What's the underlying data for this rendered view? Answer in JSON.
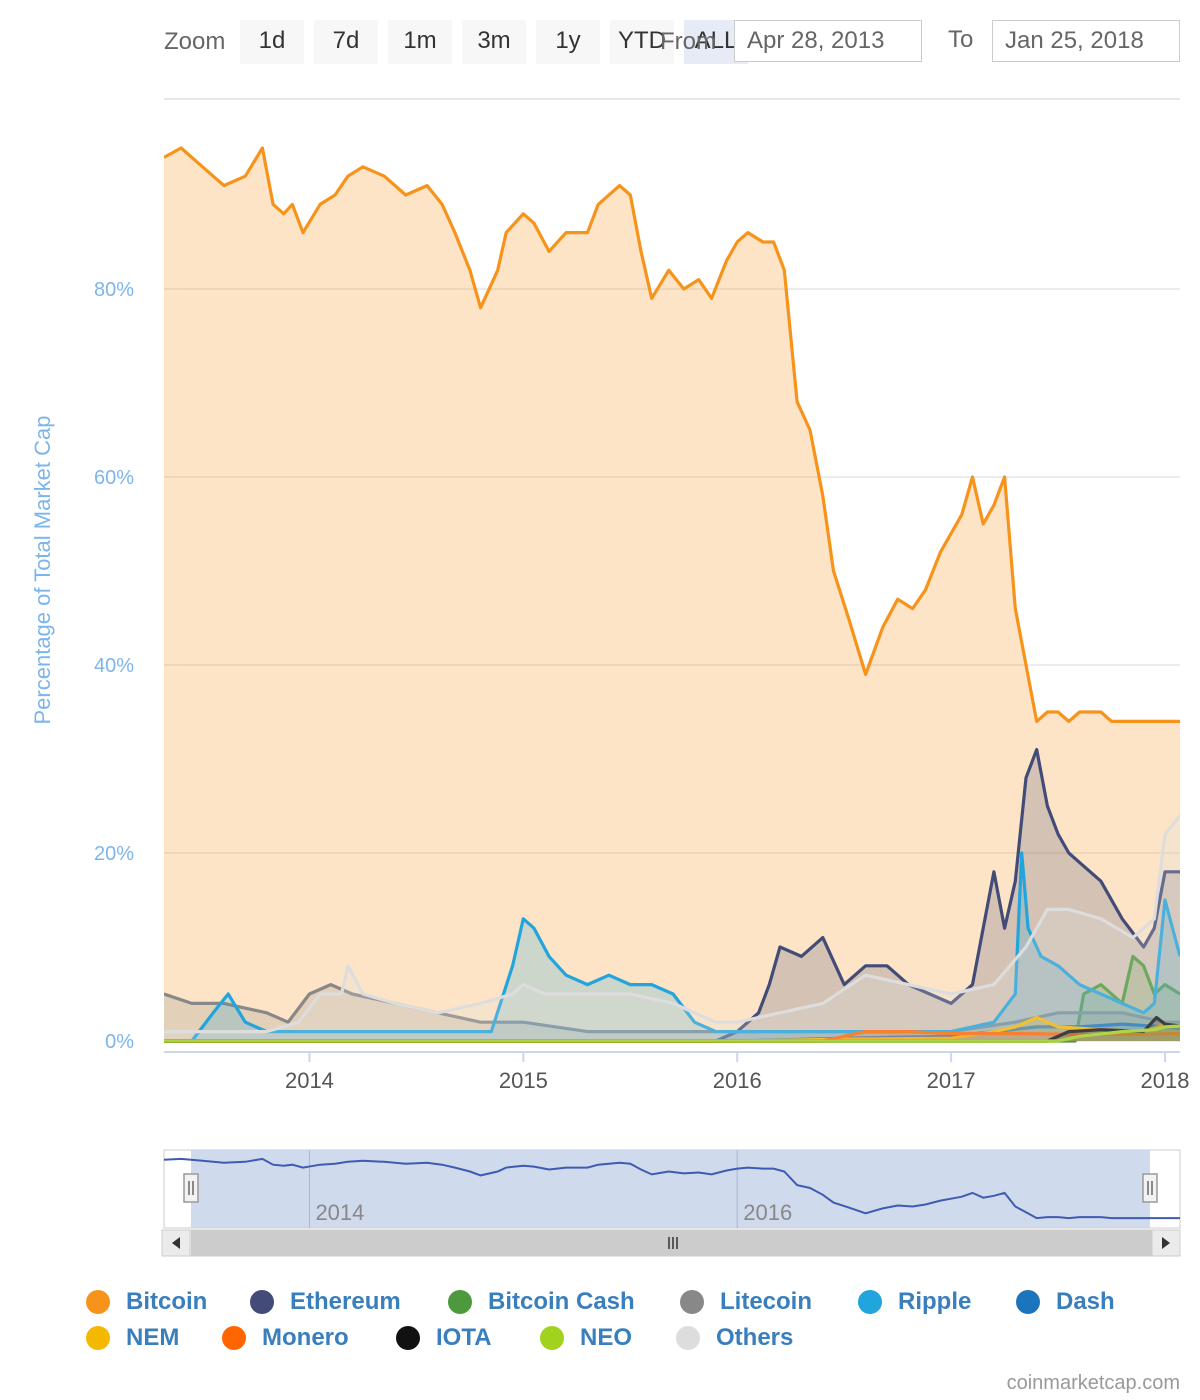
{
  "zoom": {
    "label": "Zoom",
    "buttons": [
      "1d",
      "7d",
      "1m",
      "3m",
      "1y",
      "YTD",
      "ALL"
    ],
    "active": "ALL"
  },
  "range": {
    "from_label": "From",
    "from_value": "Apr 28, 2013",
    "to_label": "To",
    "to_value": "Jan 25, 2018"
  },
  "credit": "coinmarketcap.com",
  "chart_data": {
    "type": "area",
    "title": "",
    "ylabel": "Percentage of Total Market Cap",
    "xlabel": "",
    "ylim": [
      0,
      100
    ],
    "xlim": [
      2013.32,
      2018.07
    ],
    "y_ticks": [
      "0%",
      "20%",
      "40%",
      "60%",
      "80%"
    ],
    "x_ticks": [
      "2014",
      "2015",
      "2016",
      "2017",
      "2018"
    ],
    "navigator_ticks": [
      "2014",
      "2016"
    ],
    "grid": true,
    "legend_position": "bottom",
    "series": [
      {
        "name": "Bitcoin",
        "color": "#f7931a",
        "x": [
          2013.32,
          2013.4,
          2013.5,
          2013.6,
          2013.7,
          2013.78,
          2013.83,
          2013.88,
          2013.92,
          2013.97,
          2014.05,
          2014.12,
          2014.18,
          2014.25,
          2014.35,
          2014.45,
          2014.55,
          2014.62,
          2014.68,
          2014.75,
          2014.8,
          2014.88,
          2014.92,
          2014.96,
          2015.0,
          2015.05,
          2015.12,
          2015.2,
          2015.3,
          2015.35,
          2015.45,
          2015.5,
          2015.55,
          2015.6,
          2015.68,
          2015.75,
          2015.82,
          2015.88,
          2015.95,
          2016.0,
          2016.05,
          2016.12,
          2016.17,
          2016.22,
          2016.28,
          2016.34,
          2016.4,
          2016.45,
          2016.52,
          2016.6,
          2016.68,
          2016.75,
          2016.82,
          2016.88,
          2016.95,
          2017.0,
          2017.05,
          2017.1,
          2017.15,
          2017.2,
          2017.25,
          2017.3,
          2017.35,
          2017.4,
          2017.45,
          2017.5,
          2017.55,
          2017.6,
          2017.65,
          2017.7,
          2017.75,
          2017.82,
          2017.86,
          2017.9,
          2017.93,
          2017.96,
          2018.0,
          2018.03,
          2018.07
        ],
        "values": [
          94,
          95,
          93,
          91,
          92,
          95,
          89,
          88,
          89,
          86,
          89,
          90,
          92,
          93,
          92,
          90,
          91,
          89,
          86,
          82,
          78,
          82,
          86,
          87,
          88,
          87,
          84,
          86,
          86,
          89,
          91,
          90,
          84,
          79,
          82,
          80,
          81,
          79,
          83,
          85,
          86,
          85,
          85,
          82,
          68,
          65,
          58,
          50,
          45,
          39,
          44,
          47,
          46,
          48,
          52,
          54,
          56,
          60,
          55,
          57,
          60,
          46,
          40,
          34,
          35,
          35,
          34,
          35,
          35,
          35,
          34,
          34,
          34,
          34,
          34,
          34,
          34,
          34,
          34
        ]
      },
      {
        "name": "Ethereum",
        "color": "#434c78",
        "x": [
          2013.32,
          2015.6,
          2015.9,
          2016.0,
          2016.1,
          2016.15,
          2016.2,
          2016.3,
          2016.4,
          2016.5,
          2016.6,
          2016.7,
          2016.8,
          2016.9,
          2017.0,
          2017.1,
          2017.15,
          2017.2,
          2017.25,
          2017.3,
          2017.35,
          2017.4,
          2017.45,
          2017.5,
          2017.55,
          2017.6,
          2017.7,
          2017.8,
          2017.9,
          2017.95,
          2018.0,
          2018.07
        ],
        "values": [
          0,
          0,
          0,
          1,
          3,
          6,
          10,
          9,
          11,
          6,
          8,
          8,
          6,
          5,
          4,
          6,
          12,
          18,
          12,
          17,
          28,
          31,
          25,
          22,
          20,
          19,
          17,
          13,
          10,
          12,
          18,
          18
        ]
      },
      {
        "name": "Bitcoin Cash",
        "color": "#4c9a3c",
        "x": [
          2013.32,
          2017.58,
          2017.62,
          2017.7,
          2017.8,
          2017.85,
          2017.9,
          2017.95,
          2018.0,
          2018.07
        ],
        "values": [
          0,
          0,
          5,
          6,
          4,
          9,
          8,
          5,
          6,
          5
        ]
      },
      {
        "name": "Litecoin",
        "color": "#888888",
        "x": [
          2013.32,
          2013.45,
          2013.6,
          2013.8,
          2013.9,
          2014.0,
          2014.1,
          2014.2,
          2014.4,
          2014.6,
          2014.8,
          2015.0,
          2015.3,
          2015.6,
          2015.9,
          2016.0,
          2016.2,
          2016.5,
          2016.8,
          2017.0,
          2017.3,
          2017.5,
          2017.8,
          2018.0,
          2018.07
        ],
        "values": [
          5,
          4,
          4,
          3,
          2,
          5,
          6,
          5,
          4,
          3,
          2,
          2,
          1,
          1,
          1,
          1,
          1,
          1,
          1,
          1,
          2,
          3,
          3,
          2,
          2
        ]
      },
      {
        "name": "Ripple",
        "color": "#22a4dc",
        "x": [
          2013.32,
          2013.45,
          2013.55,
          2013.62,
          2013.7,
          2013.8,
          2014.0,
          2014.3,
          2014.6,
          2014.85,
          2014.95,
          2015.0,
          2015.05,
          2015.12,
          2015.2,
          2015.3,
          2015.4,
          2015.5,
          2015.6,
          2015.7,
          2015.8,
          2015.9,
          2016.0,
          2016.3,
          2016.7,
          2017.0,
          2017.2,
          2017.3,
          2017.33,
          2017.36,
          2017.42,
          2017.5,
          2017.6,
          2017.7,
          2017.8,
          2017.9,
          2017.95,
          2018.0,
          2018.07
        ],
        "values": [
          0,
          0,
          3,
          5,
          2,
          1,
          1,
          1,
          1,
          1,
          8,
          13,
          12,
          9,
          7,
          6,
          7,
          6,
          6,
          5,
          2,
          1,
          1,
          1,
          1,
          1,
          2,
          5,
          20,
          12,
          9,
          8,
          6,
          5,
          4,
          3,
          4,
          15,
          9
        ]
      },
      {
        "name": "Dash",
        "color": "#1c75bc",
        "x": [
          2013.32,
          2016.0,
          2016.5,
          2017.0,
          2017.2,
          2017.4,
          2017.6,
          2017.8,
          2018.0,
          2018.07
        ],
        "values": [
          0,
          0,
          0.3,
          0.5,
          1,
          1.5,
          1.5,
          1.8,
          1.5,
          1.3
        ]
      },
      {
        "name": "NEM",
        "color": "#f5b800",
        "x": [
          2013.32,
          2016.0,
          2016.5,
          2017.0,
          2017.2,
          2017.3,
          2017.4,
          2017.5,
          2017.7,
          2017.9,
          2018.0,
          2018.07
        ],
        "values": [
          0,
          0,
          0.2,
          0.3,
          1,
          1.5,
          2.5,
          1.5,
          1.2,
          1.0,
          1.8,
          1.6
        ]
      },
      {
        "name": "Monero",
        "color": "#ff6600",
        "x": [
          2013.32,
          2016.4,
          2016.6,
          2016.8,
          2017.0,
          2017.3,
          2017.6,
          2017.9,
          2018.07
        ],
        "values": [
          0,
          0,
          1,
          1,
          0.8,
          0.8,
          0.7,
          0.7,
          0.8
        ]
      },
      {
        "name": "IOTA",
        "color": "#111111",
        "x": [
          2013.32,
          2017.45,
          2017.55,
          2017.7,
          2017.9,
          2017.96,
          2018.0,
          2018.07
        ],
        "values": [
          0,
          0,
          1,
          1.2,
          1,
          2.5,
          1.8,
          1.6
        ]
      },
      {
        "name": "NEO",
        "color": "#a0d21e",
        "x": [
          2013.32,
          2017.5,
          2017.6,
          2017.8,
          2017.95,
          2018.0,
          2018.07
        ],
        "values": [
          0,
          0,
          0.5,
          1,
          1.2,
          1.5,
          1.6
        ]
      },
      {
        "name": "Others",
        "color": "#dddddd",
        "x": [
          2013.32,
          2013.6,
          2013.8,
          2013.95,
          2014.05,
          2014.15,
          2014.18,
          2014.25,
          2014.4,
          2014.6,
          2014.8,
          2014.95,
          2015.0,
          2015.1,
          2015.3,
          2015.5,
          2015.7,
          2015.9,
          2016.0,
          2016.2,
          2016.4,
          2016.6,
          2016.8,
          2017.0,
          2017.2,
          2017.35,
          2017.45,
          2017.55,
          2017.7,
          2017.85,
          2017.95,
          2018.0,
          2018.07
        ],
        "values": [
          1,
          1,
          1,
          2,
          5,
          5,
          8,
          5,
          4,
          3,
          4,
          5,
          6,
          5,
          5,
          5,
          4,
          2,
          2,
          3,
          4,
          7,
          6,
          5,
          6,
          10,
          14,
          14,
          13,
          11,
          13,
          22,
          24
        ]
      }
    ]
  }
}
